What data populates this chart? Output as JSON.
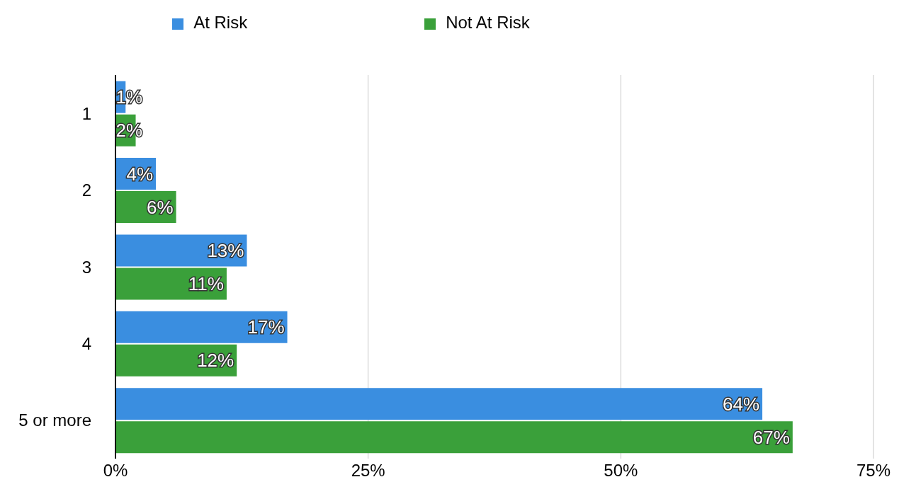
{
  "chart_data": {
    "type": "bar",
    "orientation": "horizontal",
    "categories": [
      "1",
      "2",
      "3",
      "4",
      "5 or more"
    ],
    "series": [
      {
        "name": "At Risk",
        "color": "#3a8ee0",
        "values": [
          1,
          4,
          13,
          17,
          64
        ],
        "value_labels": [
          "1%",
          "4%",
          "13%",
          "17%",
          "64%"
        ]
      },
      {
        "name": "Not At Risk",
        "color": "#3aa03a",
        "values": [
          2,
          6,
          11,
          12,
          67
        ],
        "value_labels": [
          "2%",
          "6%",
          "11%",
          "12%",
          "67%"
        ]
      }
    ],
    "xlim": [
      0,
      75
    ],
    "xticks": [
      {
        "value": 0,
        "label": "0%"
      },
      {
        "value": 25,
        "label": "25%"
      },
      {
        "value": 50,
        "label": "50%"
      },
      {
        "value": 75,
        "label": "75%"
      }
    ],
    "grid": "x",
    "legend": "top"
  }
}
